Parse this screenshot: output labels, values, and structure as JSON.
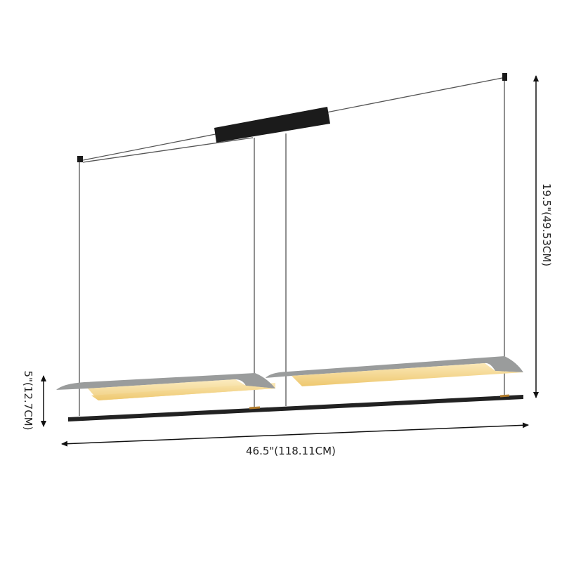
{
  "dimensions": {
    "width": "46.5\"(118.11CM)",
    "height": "19.5\"(49.53CM)",
    "drop": "5\"(12.7CM)"
  },
  "colors": {
    "frame": "#1e1e1e",
    "shade_top": "#9a9c9c",
    "shade_glow": "#f3d488",
    "accent": "#b07a2a"
  }
}
